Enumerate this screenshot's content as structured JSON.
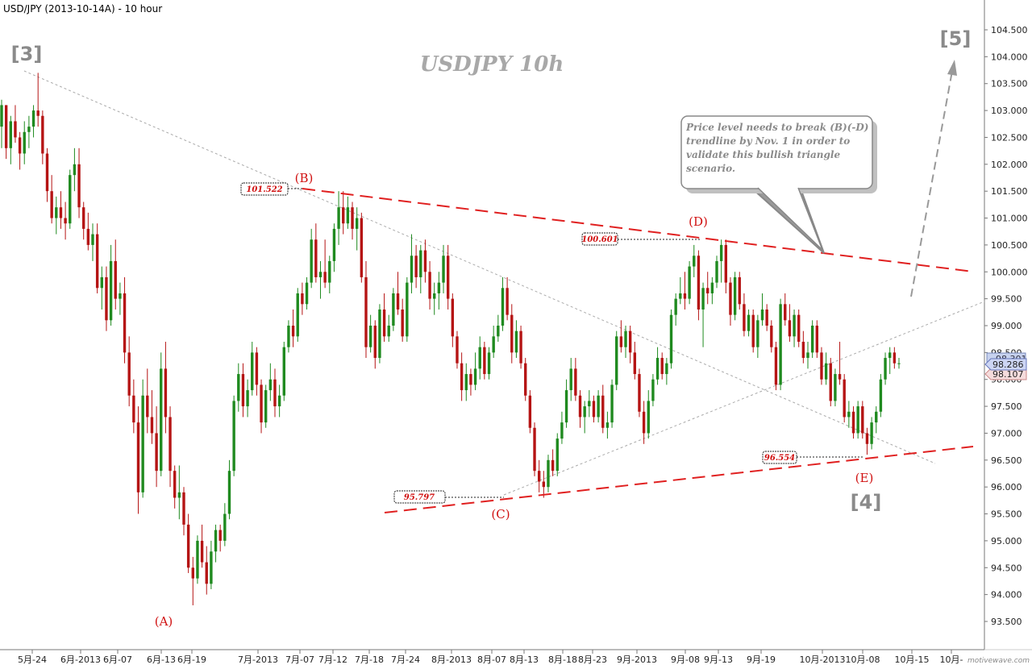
{
  "header": {
    "title": "USD/JPY (2013-10-14A) - 10 hour"
  },
  "chart_data": {
    "type": "candlestick",
    "watermark_title": "USDJPY  10h",
    "y_axis": {
      "position": "right",
      "range": [
        93.0,
        105.0
      ],
      "ticks": [
        "93.500",
        "94.000",
        "94.500",
        "95.000",
        "95.500",
        "96.000",
        "96.500",
        "97.000",
        "97.500",
        "98.000",
        "98.500",
        "99.000",
        "99.500",
        "100.000",
        "100.500",
        "101.000",
        "101.500",
        "102.000",
        "102.500",
        "103.000",
        "103.500",
        "104.000",
        "104.500"
      ]
    },
    "x_axis": {
      "ticks": [
        "5月-24",
        "6月-2013",
        "6月-07",
        "6月-13",
        "6月-19",
        "7月-2013",
        "7月-07",
        "7月-12",
        "7月-18",
        "7月-24",
        "8月-2013",
        "8月-07",
        "8月-13",
        "8月-18",
        "8月-23",
        "9月-2013",
        "9月-08",
        "9月-13",
        "9月-19",
        "10月-2013",
        "10月-08",
        "10月-15",
        "10月-"
      ]
    },
    "price_labels": {
      "bid": "98.286",
      "ask": "98.107",
      "hidden": "98.301"
    },
    "price_tags": [
      {
        "value": "101.522"
      },
      {
        "value": "100.601"
      },
      {
        "value": "95.797"
      },
      {
        "value": "96.554"
      }
    ],
    "wave_labels": [
      "(A)",
      "(B)",
      "(C)",
      "(D)",
      "(E)"
    ],
    "degree_labels": [
      "[3]",
      "[4]",
      "[5]"
    ],
    "callout": "Price level needs to break (B)(-D) trendline by Nov. 1 in order to validate this bullish triangle scenario.",
    "candles": [
      [
        102.7,
        103.2,
        102.3,
        103.1
      ],
      [
        103.1,
        103.1,
        102.1,
        102.3
      ],
      [
        102.3,
        102.9,
        102.0,
        102.8
      ],
      [
        102.8,
        103.1,
        102.4,
        102.5
      ],
      [
        102.5,
        102.6,
        101.9,
        102.2
      ],
      [
        102.2,
        102.8,
        102.0,
        102.6
      ],
      [
        102.6,
        102.9,
        102.3,
        102.7
      ],
      [
        102.7,
        103.1,
        102.5,
        103.0
      ],
      [
        103.0,
        103.7,
        102.7,
        102.9
      ],
      [
        102.9,
        103.0,
        102.0,
        102.2
      ],
      [
        102.2,
        102.3,
        101.3,
        101.5
      ],
      [
        101.5,
        101.8,
        100.9,
        101.0
      ],
      [
        101.0,
        101.4,
        100.7,
        101.2
      ],
      [
        101.2,
        101.5,
        100.8,
        101.0
      ],
      [
        101.0,
        101.3,
        100.6,
        100.9
      ],
      [
        100.9,
        101.9,
        100.8,
        101.8
      ],
      [
        101.8,
        102.3,
        101.5,
        102.0
      ],
      [
        102.0,
        102.3,
        101.0,
        101.2
      ],
      [
        101.2,
        101.3,
        100.6,
        100.8
      ],
      [
        100.8,
        101.1,
        100.4,
        100.5
      ],
      [
        100.5,
        100.9,
        100.2,
        100.7
      ],
      [
        100.7,
        100.9,
        99.6,
        99.7
      ],
      [
        99.7,
        100.1,
        99.3,
        99.9
      ],
      [
        99.9,
        100.1,
        98.9,
        99.1
      ],
      [
        99.1,
        100.5,
        99.0,
        100.2
      ],
      [
        100.2,
        100.6,
        99.3,
        99.5
      ],
      [
        99.5,
        99.8,
        99.2,
        99.6
      ],
      [
        99.6,
        99.9,
        98.3,
        98.5
      ],
      [
        98.5,
        98.8,
        97.5,
        97.7
      ],
      [
        97.7,
        98.0,
        97.0,
        97.2
      ],
      [
        97.2,
        97.5,
        95.5,
        95.9
      ],
      [
        95.9,
        98.0,
        95.8,
        97.7
      ],
      [
        97.7,
        98.2,
        97.0,
        97.3
      ],
      [
        97.3,
        97.8,
        96.8,
        97.0
      ],
      [
        97.0,
        97.5,
        96.0,
        96.3
      ],
      [
        96.3,
        98.5,
        96.2,
        98.2
      ],
      [
        98.2,
        98.7,
        97.0,
        97.3
      ],
      [
        97.3,
        97.5,
        96.0,
        96.3
      ],
      [
        96.3,
        96.4,
        95.6,
        95.8
      ],
      [
        95.8,
        96.4,
        95.4,
        95.9
      ],
      [
        95.9,
        96.0,
        95.1,
        95.3
      ],
      [
        95.3,
        95.5,
        94.4,
        94.5
      ],
      [
        94.5,
        94.7,
        93.8,
        94.3
      ],
      [
        94.3,
        95.1,
        94.2,
        95.0
      ],
      [
        95.0,
        95.3,
        94.5,
        94.6
      ],
      [
        94.6,
        94.9,
        94.0,
        94.2
      ],
      [
        94.2,
        95.0,
        94.1,
        94.8
      ],
      [
        94.8,
        95.3,
        94.6,
        95.2
      ],
      [
        95.2,
        95.3,
        94.8,
        95.0
      ],
      [
        95.0,
        95.7,
        94.9,
        95.5
      ],
      [
        95.5,
        96.5,
        95.4,
        96.3
      ],
      [
        96.3,
        97.7,
        96.2,
        97.6
      ],
      [
        97.6,
        98.3,
        97.4,
        98.1
      ],
      [
        98.1,
        98.3,
        97.3,
        97.5
      ],
      [
        97.5,
        98.0,
        97.3,
        97.8
      ],
      [
        97.8,
        98.7,
        97.7,
        98.5
      ],
      [
        98.5,
        98.6,
        97.7,
        97.9
      ],
      [
        97.9,
        98.0,
        97.0,
        97.2
      ],
      [
        97.2,
        97.9,
        97.1,
        97.8
      ],
      [
        97.8,
        98.3,
        97.6,
        98.0
      ],
      [
        98.0,
        98.2,
        97.3,
        97.5
      ],
      [
        97.5,
        97.9,
        97.3,
        97.7
      ],
      [
        97.7,
        98.7,
        97.6,
        98.6
      ],
      [
        98.6,
        99.1,
        98.5,
        99.0
      ],
      [
        99.0,
        99.3,
        98.6,
        98.8
      ],
      [
        98.8,
        99.7,
        98.7,
        99.6
      ],
      [
        99.6,
        99.8,
        99.2,
        99.4
      ],
      [
        99.4,
        99.9,
        99.3,
        99.8
      ],
      [
        99.8,
        100.8,
        99.7,
        100.6
      ],
      [
        100.6,
        100.9,
        99.8,
        99.9
      ],
      [
        99.9,
        100.2,
        99.5,
        100.0
      ],
      [
        100.0,
        100.6,
        99.7,
        99.8
      ],
      [
        99.8,
        100.3,
        99.6,
        100.2
      ],
      [
        100.2,
        100.9,
        100.0,
        100.8
      ],
      [
        100.8,
        101.5,
        100.5,
        101.2
      ],
      [
        101.2,
        101.5,
        100.7,
        100.9
      ],
      [
        100.9,
        101.4,
        100.8,
        101.2
      ],
      [
        101.2,
        101.3,
        100.6,
        100.8
      ],
      [
        100.8,
        101.2,
        100.4,
        101.0
      ],
      [
        101.0,
        101.1,
        99.8,
        99.9
      ],
      [
        99.9,
        100.2,
        98.4,
        98.6
      ],
      [
        98.6,
        99.2,
        98.5,
        99.0
      ],
      [
        99.0,
        99.1,
        98.2,
        98.4
      ],
      [
        98.4,
        99.4,
        98.3,
        99.3
      ],
      [
        99.3,
        99.6,
        98.7,
        98.8
      ],
      [
        98.8,
        99.2,
        98.7,
        99.0
      ],
      [
        99.0,
        99.7,
        98.9,
        99.6
      ],
      [
        99.6,
        100.0,
        99.2,
        99.3
      ],
      [
        99.3,
        99.5,
        98.7,
        98.8
      ],
      [
        98.8,
        99.9,
        98.7,
        99.8
      ],
      [
        99.8,
        100.7,
        99.6,
        100.3
      ],
      [
        100.3,
        100.5,
        99.7,
        99.9
      ],
      [
        99.9,
        100.5,
        99.6,
        100.4
      ],
      [
        100.4,
        100.6,
        99.8,
        100.0
      ],
      [
        100.0,
        100.2,
        99.3,
        99.5
      ],
      [
        99.5,
        99.8,
        99.2,
        99.6
      ],
      [
        99.6,
        100.0,
        99.3,
        99.8
      ],
      [
        99.8,
        100.5,
        99.6,
        100.3
      ],
      [
        100.3,
        100.5,
        99.3,
        99.5
      ],
      [
        99.5,
        99.6,
        98.6,
        98.8
      ],
      [
        98.8,
        98.9,
        98.2,
        98.3
      ],
      [
        98.3,
        98.5,
        97.6,
        97.8
      ],
      [
        97.8,
        98.3,
        97.6,
        98.1
      ],
      [
        98.1,
        98.2,
        97.7,
        97.9
      ],
      [
        97.9,
        98.5,
        97.8,
        98.2
      ],
      [
        98.2,
        98.8,
        98.0,
        98.6
      ],
      [
        98.6,
        98.7,
        98.0,
        98.1
      ],
      [
        98.1,
        98.6,
        98.0,
        98.5
      ],
      [
        98.5,
        99.0,
        98.4,
        98.8
      ],
      [
        98.8,
        99.2,
        98.7,
        99.0
      ],
      [
        99.0,
        99.9,
        98.9,
        99.7
      ],
      [
        99.7,
        99.9,
        99.1,
        99.2
      ],
      [
        99.2,
        99.4,
        98.3,
        98.5
      ],
      [
        98.5,
        99.1,
        98.4,
        98.9
      ],
      [
        98.9,
        99.0,
        98.2,
        98.3
      ],
      [
        98.3,
        98.4,
        97.6,
        97.7
      ],
      [
        97.7,
        97.8,
        97.0,
        97.1
      ],
      [
        97.1,
        97.2,
        96.2,
        96.3
      ],
      [
        96.3,
        96.5,
        95.9,
        96.1
      ],
      [
        96.1,
        96.3,
        95.8,
        96.0
      ],
      [
        96.0,
        96.6,
        95.9,
        96.5
      ],
      [
        96.5,
        96.7,
        96.2,
        96.3
      ],
      [
        96.3,
        97.0,
        96.2,
        96.9
      ],
      [
        96.9,
        97.4,
        96.8,
        97.2
      ],
      [
        97.2,
        98.0,
        97.1,
        97.8
      ],
      [
        97.8,
        98.4,
        97.6,
        98.2
      ],
      [
        98.2,
        98.4,
        97.6,
        97.7
      ],
      [
        97.7,
        97.8,
        97.1,
        97.3
      ],
      [
        97.3,
        97.6,
        97.0,
        97.5
      ],
      [
        97.5,
        97.8,
        97.3,
        97.6
      ],
      [
        97.6,
        97.7,
        97.2,
        97.3
      ],
      [
        97.3,
        97.8,
        97.2,
        97.7
      ],
      [
        97.7,
        97.9,
        97.0,
        97.1
      ],
      [
        97.1,
        97.4,
        96.9,
        97.2
      ],
      [
        97.2,
        98.0,
        97.1,
        97.9
      ],
      [
        97.9,
        98.9,
        97.8,
        98.8
      ],
      [
        98.8,
        99.1,
        98.5,
        98.6
      ],
      [
        98.6,
        99.0,
        98.4,
        98.9
      ],
      [
        98.9,
        99.0,
        98.3,
        98.5
      ],
      [
        98.5,
        98.7,
        98.0,
        98.1
      ],
      [
        98.1,
        98.2,
        97.3,
        97.4
      ],
      [
        97.4,
        97.6,
        96.8,
        97.0
      ],
      [
        97.0,
        97.8,
        96.9,
        97.6
      ],
      [
        97.6,
        98.1,
        97.5,
        98.0
      ],
      [
        98.0,
        98.6,
        97.9,
        98.4
      ],
      [
        98.4,
        98.5,
        98.0,
        98.1
      ],
      [
        98.1,
        98.4,
        97.9,
        98.3
      ],
      [
        98.3,
        99.3,
        98.2,
        99.2
      ],
      [
        99.2,
        99.6,
        99.0,
        99.5
      ],
      [
        99.5,
        99.9,
        99.4,
        99.6
      ],
      [
        99.6,
        100.0,
        99.3,
        99.5
      ],
      [
        99.5,
        100.2,
        99.4,
        100.1
      ],
      [
        100.1,
        100.5,
        99.9,
        100.3
      ],
      [
        100.3,
        100.4,
        99.1,
        99.3
      ],
      [
        99.3,
        99.8,
        98.6,
        99.7
      ],
      [
        99.7,
        100.0,
        99.4,
        99.6
      ],
      [
        99.6,
        99.9,
        99.4,
        99.8
      ],
      [
        99.8,
        100.3,
        99.7,
        100.2
      ],
      [
        100.2,
        100.6,
        99.8,
        100.5
      ],
      [
        100.5,
        100.6,
        99.6,
        99.8
      ],
      [
        99.8,
        99.9,
        99.0,
        99.2
      ],
      [
        99.2,
        100.0,
        99.1,
        99.9
      ],
      [
        99.9,
        100.0,
        99.3,
        99.4
      ],
      [
        99.4,
        99.6,
        98.8,
        98.9
      ],
      [
        98.9,
        99.3,
        98.8,
        99.2
      ],
      [
        99.2,
        99.3,
        98.5,
        98.6
      ],
      [
        98.6,
        99.2,
        98.4,
        99.1
      ],
      [
        99.1,
        99.6,
        99.0,
        99.3
      ],
      [
        99.3,
        99.4,
        98.9,
        99.0
      ],
      [
        99.0,
        99.1,
        98.5,
        98.6
      ],
      [
        98.6,
        98.7,
        97.8,
        97.9
      ],
      [
        97.9,
        99.5,
        97.8,
        99.4
      ],
      [
        99.4,
        99.6,
        99.0,
        99.1
      ],
      [
        99.1,
        99.4,
        98.7,
        98.8
      ],
      [
        98.8,
        99.3,
        98.6,
        99.2
      ],
      [
        99.2,
        99.3,
        98.6,
        98.7
      ],
      [
        98.7,
        98.9,
        98.3,
        98.4
      ],
      [
        98.4,
        98.7,
        98.2,
        98.5
      ],
      [
        98.5,
        99.1,
        98.4,
        99.0
      ],
      [
        99.0,
        99.1,
        98.4,
        98.5
      ],
      [
        98.5,
        98.6,
        97.9,
        98.0
      ],
      [
        98.0,
        98.5,
        97.9,
        98.3
      ],
      [
        98.3,
        98.4,
        97.5,
        97.6
      ],
      [
        97.6,
        98.2,
        97.5,
        98.1
      ],
      [
        98.1,
        98.7,
        97.9,
        98.0
      ],
      [
        98.0,
        98.1,
        97.2,
        97.3
      ],
      [
        97.3,
        97.6,
        97.1,
        97.4
      ],
      [
        97.4,
        97.5,
        96.9,
        97.0
      ],
      [
        97.0,
        97.6,
        96.9,
        97.5
      ],
      [
        97.5,
        97.6,
        96.9,
        97.0
      ],
      [
        97.0,
        97.1,
        96.6,
        96.8
      ],
      [
        96.8,
        97.3,
        96.7,
        97.2
      ],
      [
        97.2,
        97.5,
        97.0,
        97.4
      ],
      [
        97.4,
        98.1,
        97.3,
        98.0
      ],
      [
        98.0,
        98.5,
        97.9,
        98.4
      ],
      [
        98.4,
        98.6,
        98.1,
        98.5
      ],
      [
        98.5,
        98.6,
        98.2,
        98.3
      ],
      [
        98.3,
        98.4,
        98.2,
        98.3
      ]
    ]
  }
}
